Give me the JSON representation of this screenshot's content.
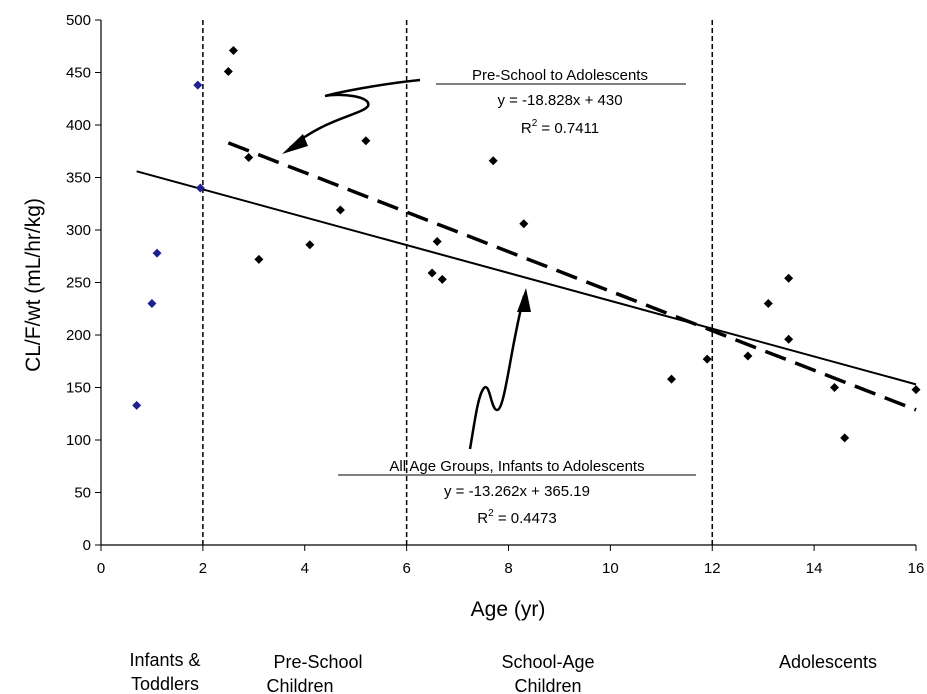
{
  "chart_data": {
    "type": "scatter",
    "xlabel": "Age (yr)",
    "ylabel": "CL/F/wt (mL/hr/kg)",
    "xlim": [
      0,
      16
    ],
    "ylim": [
      0,
      500
    ],
    "xticks": [
      0,
      2,
      4,
      6,
      8,
      10,
      12,
      14,
      16
    ],
    "yticks": [
      0,
      50,
      100,
      150,
      200,
      250,
      300,
      350,
      400,
      450,
      500
    ],
    "grid": false,
    "colors": {
      "infants": "#1f1f8f",
      "others": "#000000",
      "lines": "#000000"
    },
    "series": [
      {
        "group": "infants",
        "marker": "diamond",
        "points": [
          [
            0.7,
            133
          ],
          [
            1.0,
            230
          ],
          [
            1.1,
            278
          ],
          [
            1.9,
            438
          ],
          [
            1.95,
            340
          ]
        ]
      },
      {
        "group": "others",
        "marker": "diamond",
        "points": [
          [
            2.5,
            451
          ],
          [
            2.6,
            471
          ],
          [
            2.9,
            369
          ],
          [
            3.1,
            272
          ],
          [
            4.1,
            286
          ],
          [
            4.7,
            319
          ],
          [
            5.2,
            385
          ],
          [
            6.5,
            259
          ],
          [
            6.6,
            289
          ],
          [
            6.7,
            253
          ],
          [
            7.7,
            366
          ],
          [
            8.3,
            306
          ],
          [
            11.2,
            158
          ],
          [
            11.9,
            177
          ],
          [
            12.7,
            180
          ],
          [
            13.1,
            230
          ],
          [
            13.5,
            254
          ],
          [
            13.5,
            196
          ],
          [
            14.4,
            150
          ],
          [
            14.6,
            102
          ],
          [
            16.0,
            148
          ]
        ]
      }
    ],
    "trendlines": [
      {
        "style": "solid",
        "slope": -13.262,
        "intercept": 365.19,
        "x_range": [
          0.7,
          16
        ]
      },
      {
        "style": "dashed",
        "slope": -18.828,
        "intercept": 430,
        "x_range": [
          2.5,
          16
        ]
      }
    ],
    "vertical_lines": [
      2,
      6,
      12
    ],
    "annotations": [
      {
        "title": "Pre-School to Adolescents",
        "equation": "y = -18.828x + 430",
        "r2_prefix": "R",
        "r2_sup": "2",
        "r2_value": " = 0.7411"
      },
      {
        "title": "All Age Groups, Infants to Adolescents",
        "equation": "y = -13.262x + 365.19",
        "r2_prefix": "R",
        "r2_sup": "2",
        "r2_value": " = 0.4473"
      }
    ],
    "age_groups": [
      {
        "line1": "Infants &",
        "line2": "Toddlers"
      },
      {
        "line1": "Pre-School",
        "line2": "Children"
      },
      {
        "line1": "School-Age",
        "line2": "Children"
      },
      {
        "line1": "Adolescents",
        "line2": ""
      }
    ]
  }
}
